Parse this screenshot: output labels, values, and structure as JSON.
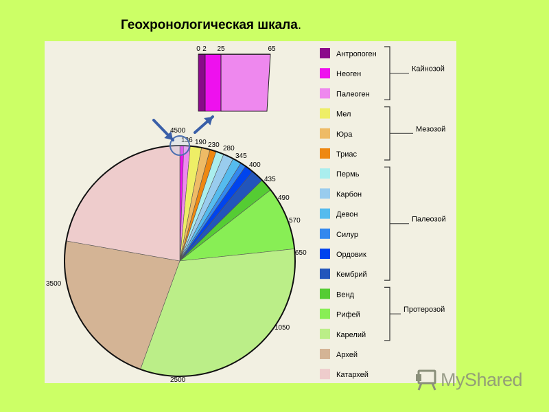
{
  "slide": {
    "background": "#ccff66",
    "panel_background": "#f2f0e2"
  },
  "title": {
    "text": "Геохронологическая шкала",
    "suffix": "."
  },
  "watermark": {
    "text": "MyShared",
    "icon": "presentation-board-icon"
  },
  "chart_data": {
    "type": "pie",
    "title": "Геохронологическая шкала",
    "unit_note": "",
    "boundaries": [
      0,
      2,
      25,
      65,
      136,
      190,
      230,
      280,
      345,
      400,
      435,
      490,
      570,
      650,
      1050,
      2500,
      3500,
      4500
    ],
    "boundary_labels": [
      "4500",
      "136",
      "190",
      "230",
      "280",
      "345",
      "400",
      "435",
      "490",
      "570",
      "650",
      "1050",
      "2500",
      "3500"
    ],
    "slices": [
      {
        "name": "Антропоген",
        "start": 0,
        "end": 2,
        "color": "#8b0a8b"
      },
      {
        "name": "Неоген",
        "start": 2,
        "end": 25,
        "color": "#ee11ee"
      },
      {
        "name": "Палеоген",
        "start": 25,
        "end": 65,
        "color": "#ee88ee"
      },
      {
        "name": "Мел",
        "start": 65,
        "end": 136,
        "color": "#eeee66"
      },
      {
        "name": "Юра",
        "start": 136,
        "end": 190,
        "color": "#eebb66"
      },
      {
        "name": "Триас",
        "start": 190,
        "end": 230,
        "color": "#ee8811"
      },
      {
        "name": "Пермь",
        "start": 230,
        "end": 280,
        "color": "#aaeeee"
      },
      {
        "name": "Карбон",
        "start": 280,
        "end": 345,
        "color": "#99ccee"
      },
      {
        "name": "Девон",
        "start": 345,
        "end": 400,
        "color": "#55bbee"
      },
      {
        "name": "Силур",
        "start": 400,
        "end": 435,
        "color": "#3388ee"
      },
      {
        "name": "Ордовик",
        "start": 435,
        "end": 490,
        "color": "#0044ee"
      },
      {
        "name": "Кембрий",
        "start": 490,
        "end": 570,
        "color": "#2255bb"
      },
      {
        "name": "Венд",
        "start": 570,
        "end": 650,
        "color": "#55cc33"
      },
      {
        "name": "Рифей",
        "start": 650,
        "end": 1050,
        "color": "#88ee55"
      },
      {
        "name": "Карелий",
        "start": 1050,
        "end": 2500,
        "color": "#bbee88"
      },
      {
        "name": "Архей",
        "start": 2500,
        "end": 3500,
        "color": "#d4b495"
      },
      {
        "name": "Катархей",
        "start": 3500,
        "end": 4500,
        "color": "#eecccc"
      }
    ],
    "zoom_inset": {
      "labels": [
        "0",
        "2",
        "25",
        "65"
      ],
      "slices": [
        "Антропоген",
        "Неоген",
        "Палеоген"
      ]
    },
    "groups": [
      {
        "name": "Кайнозой",
        "members": [
          "Антропоген",
          "Неоген",
          "Палеоген"
        ]
      },
      {
        "name": "Мезозой",
        "members": [
          "Мел",
          "Юра",
          "Триас"
        ]
      },
      {
        "name": "Палеозой",
        "members": [
          "Пермь",
          "Карбон",
          "Девон",
          "Силур",
          "Ордовик",
          "Кембрий"
        ]
      },
      {
        "name": "Протерозой",
        "members": [
          "Венд",
          "Рифей",
          "Карелий"
        ]
      }
    ],
    "legend_position": "right",
    "arrow_color": "#3a5fa8"
  }
}
